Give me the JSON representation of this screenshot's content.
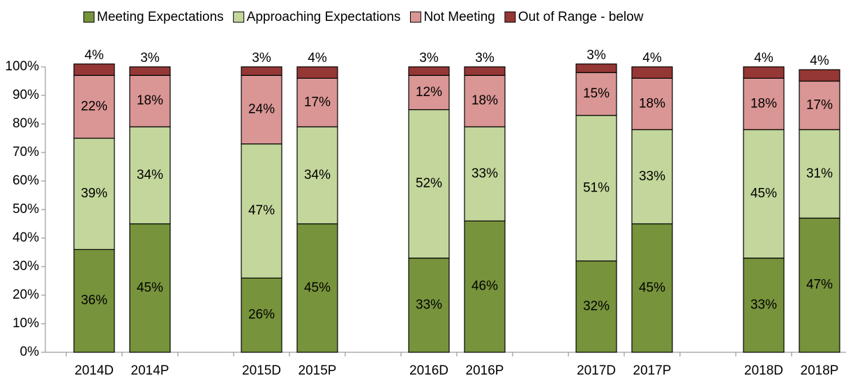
{
  "chart_data": {
    "type": "stacked_bar",
    "categories": [
      "2014D",
      "2014P",
      null,
      "2015D",
      "2015P",
      null,
      "2016D",
      "2016P",
      null,
      "2017D",
      "2017P",
      null,
      "2018D",
      "2018P"
    ],
    "series": [
      {
        "name": "Meeting Expectations",
        "color": "#77933c",
        "values": [
          36,
          45,
          null,
          26,
          45,
          null,
          33,
          46,
          null,
          32,
          45,
          null,
          33,
          47
        ],
        "value_labels": [
          "36%",
          "45%",
          null,
          "26%",
          "45%",
          null,
          "33%",
          "46%",
          null,
          "32%",
          "45%",
          null,
          "33%",
          "47%"
        ]
      },
      {
        "name": "Approaching Expectations",
        "color": "#c3d69b",
        "values": [
          39,
          34,
          null,
          47,
          34,
          null,
          52,
          33,
          null,
          51,
          33,
          null,
          45,
          31
        ],
        "value_labels": [
          "39%",
          "34%",
          null,
          "47%",
          "34%",
          null,
          "52%",
          "33%",
          null,
          "51%",
          "33%",
          null,
          "45%",
          "31%"
        ]
      },
      {
        "name": "Not Meeting",
        "color": "#d99694",
        "values": [
          22,
          18,
          null,
          24,
          17,
          null,
          12,
          18,
          null,
          15,
          18,
          null,
          18,
          17
        ],
        "value_labels": [
          "22%",
          "18%",
          null,
          "24%",
          "17%",
          null,
          "12%",
          "18%",
          null,
          "15%",
          "18%",
          null,
          "18%",
          "17%"
        ]
      },
      {
        "name": "Out of Range - below",
        "color": "#953735",
        "values": [
          4,
          3,
          null,
          3,
          4,
          null,
          3,
          3,
          null,
          3,
          4,
          null,
          4,
          4
        ],
        "value_labels": [
          "4%",
          "3%",
          null,
          "3%",
          "4%",
          null,
          "3%",
          "3%",
          null,
          "3%",
          "4%",
          null,
          "4%",
          "4%"
        ]
      }
    ],
    "ylim": [
      0,
      100
    ],
    "yticks": [
      {
        "value": 0,
        "label": "0%"
      },
      {
        "value": 10,
        "label": "10%"
      },
      {
        "value": 20,
        "label": "20%"
      },
      {
        "value": 30,
        "label": "30%"
      },
      {
        "value": 40,
        "label": "40%"
      },
      {
        "value": 50,
        "label": "50%"
      },
      {
        "value": 60,
        "label": "60%"
      },
      {
        "value": 70,
        "label": "70%"
      },
      {
        "value": 80,
        "label": "80%"
      },
      {
        "value": 90,
        "label": "90%"
      },
      {
        "value": 100,
        "label": "100%"
      }
    ],
    "legend": "top"
  }
}
